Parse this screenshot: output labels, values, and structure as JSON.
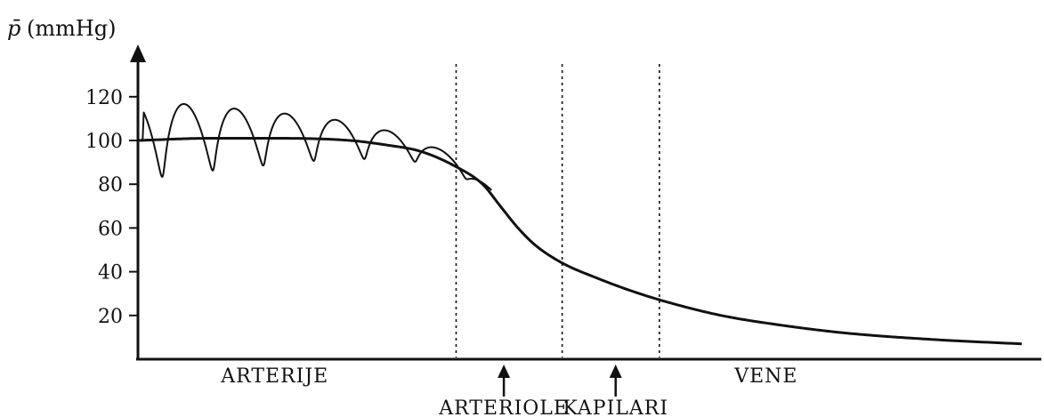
{
  "chart_data": {
    "type": "line",
    "ylabel": "p̄(mmHg)",
    "ylabel_symbol": "p̄",
    "ylabel_unit": "(mmHg)",
    "xlabel": "",
    "ylim": [
      0,
      130
    ],
    "yticks": [
      20,
      40,
      60,
      80,
      100,
      120
    ],
    "grid": false,
    "line_color": "#111111",
    "segments": [
      {
        "label": "ARTERIJE",
        "row": 1,
        "arrow": false
      },
      {
        "label": "ARTERIOLE",
        "row": 2,
        "arrow": true
      },
      {
        "label": "KAPILARI",
        "row": 2,
        "arrow": true
      },
      {
        "label": "VENE",
        "row": 1,
        "arrow": false
      }
    ],
    "boundaries": [
      0.36,
      0.48,
      0.59
    ],
    "series": [
      {
        "kind": "mean",
        "x": [
          0.0,
          0.08,
          0.16,
          0.24,
          0.28,
          0.32,
          0.36,
          0.39,
          0.41,
          0.43,
          0.45,
          0.48,
          0.52,
          0.56,
          0.6,
          0.66,
          0.72,
          0.8,
          0.9,
          1.0
        ],
        "y": [
          100,
          101,
          101,
          100,
          98,
          95,
          88,
          80,
          70,
          60,
          52,
          44,
          37,
          31,
          26,
          20,
          16,
          12,
          9,
          7
        ]
      },
      {
        "kind": "pulsatile",
        "x_start": 0.0,
        "x_end": 0.4,
        "cycles": 7,
        "amplitude_start": 17,
        "amplitude_end": 2
      }
    ]
  }
}
